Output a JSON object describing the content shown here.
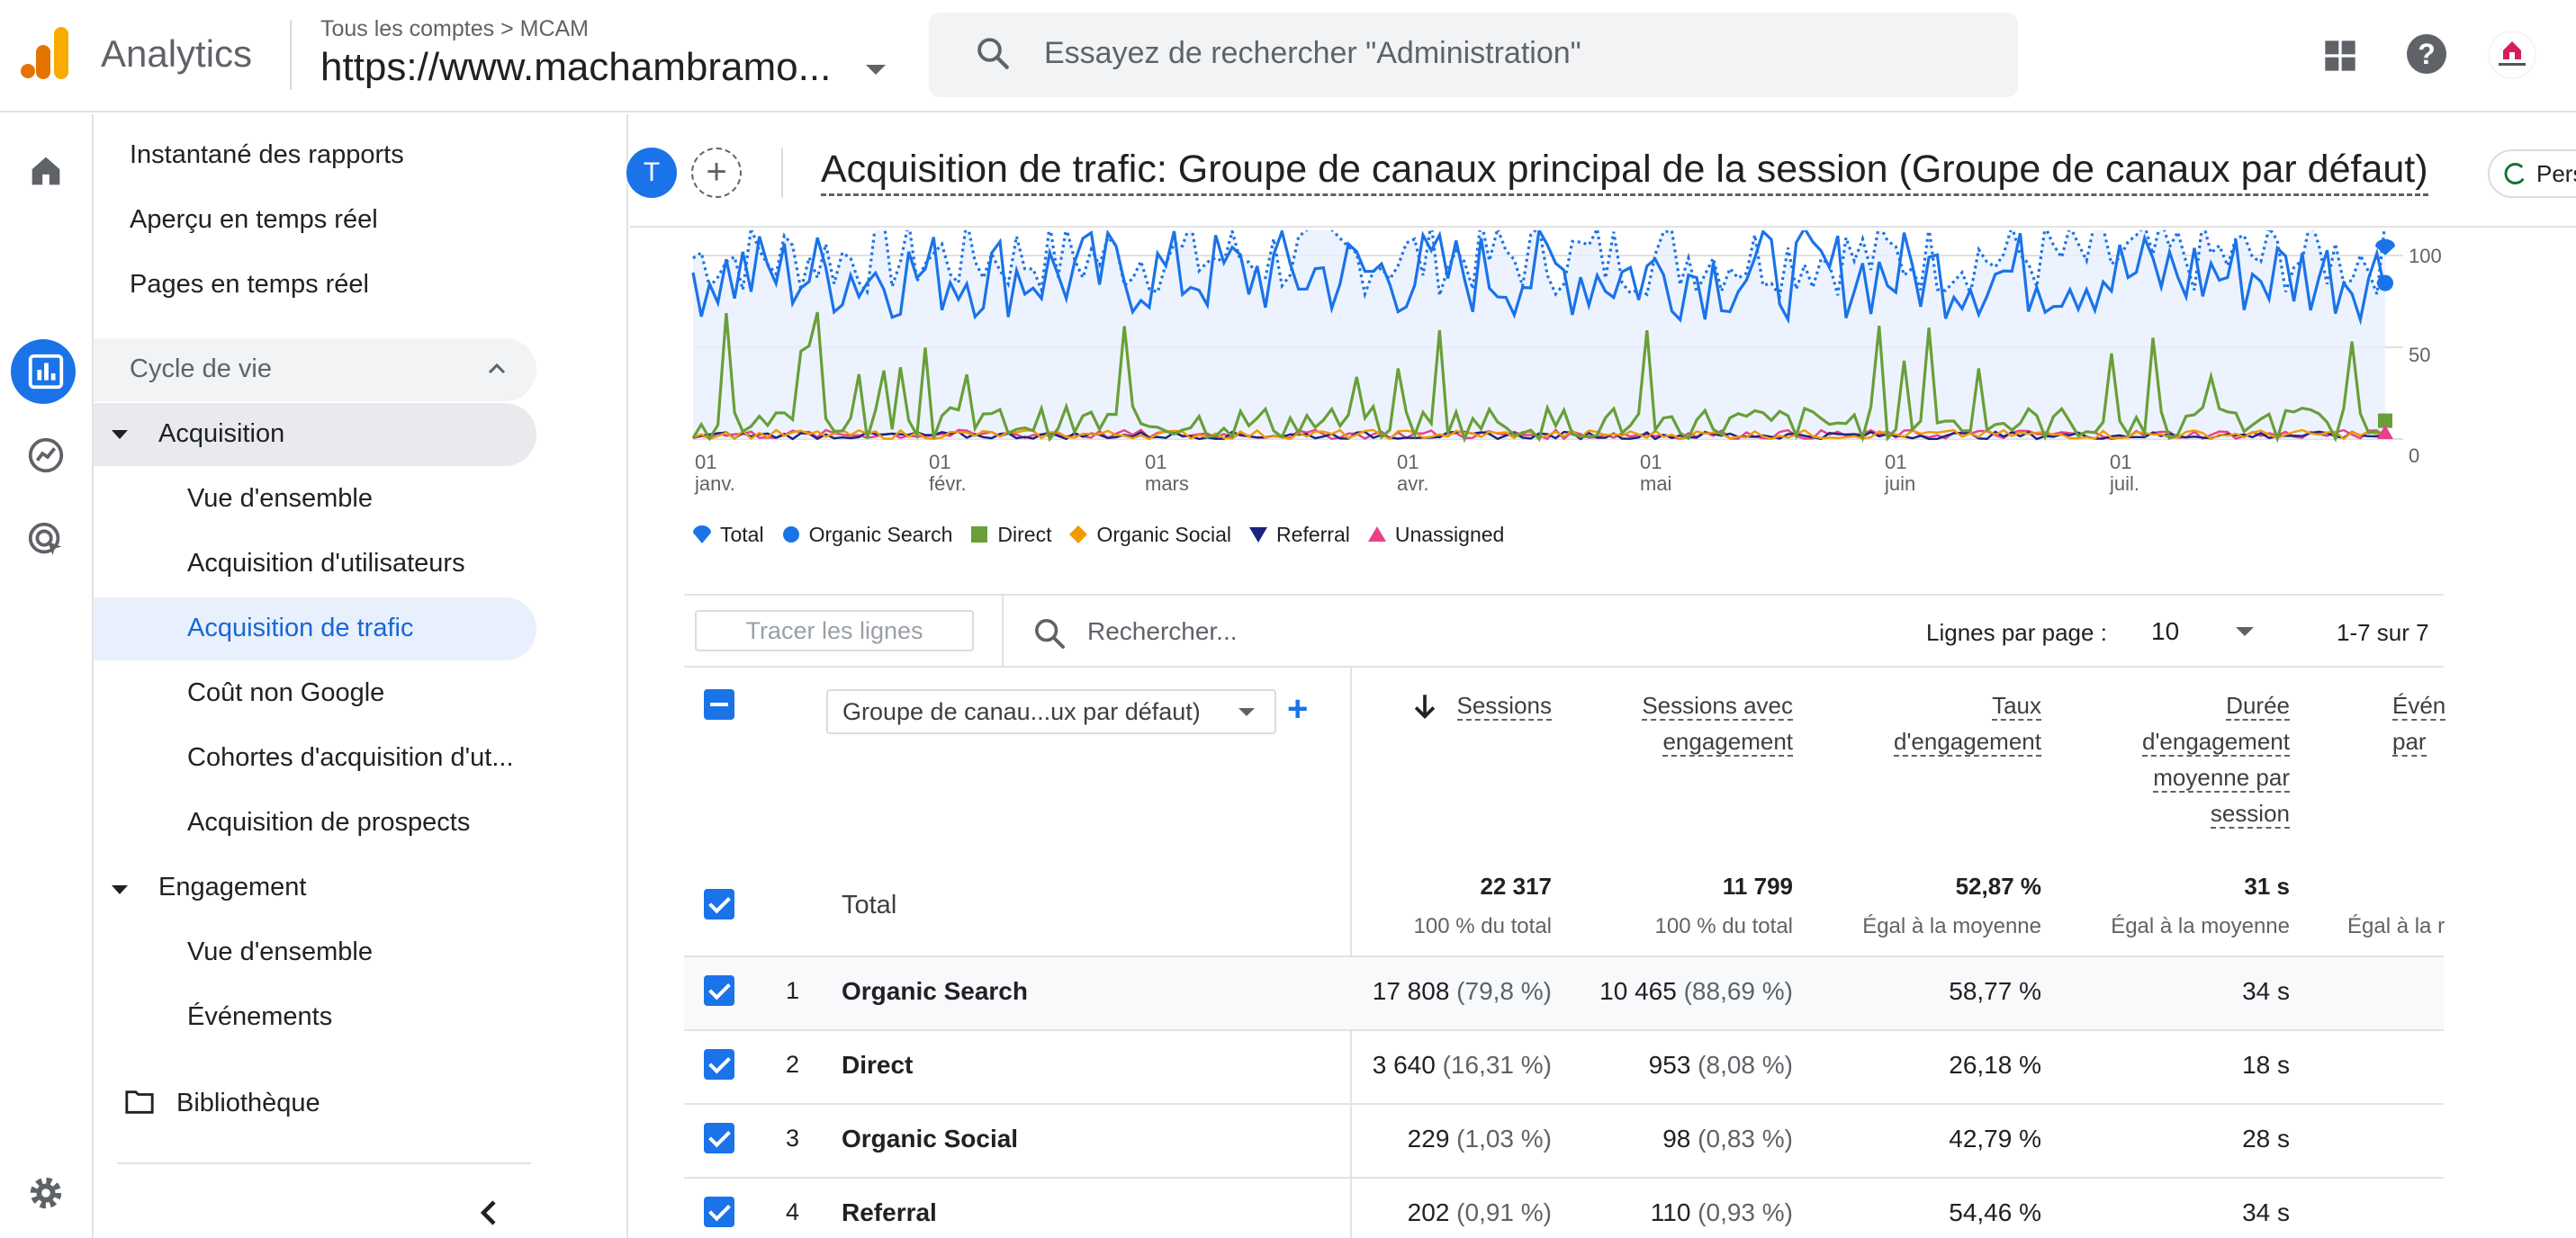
{
  "header": {
    "app_name": "Analytics",
    "breadcrumb": "Tous les comptes > MCAM",
    "property": "https://www.machambramo...",
    "search_placeholder": "Essayez de rechercher \"Administration\"",
    "icons": [
      "apps-icon",
      "help-icon",
      "account-avatar"
    ]
  },
  "left_rail": {
    "icons": [
      "home-icon",
      "reports-icon",
      "explore-icon",
      "advertising-icon",
      "settings-icon"
    ]
  },
  "nav": {
    "items": [
      {
        "label": "Instantané des rapports"
      },
      {
        "label": "Aperçu en temps réel"
      },
      {
        "label": "Pages en temps réel"
      }
    ],
    "lifecycle": "Cycle de vie",
    "acquisition": "Acquisition",
    "acquisition_items": [
      {
        "label": "Vue d'ensemble"
      },
      {
        "label": "Acquisition d'utilisateurs"
      },
      {
        "label": "Acquisition de trafic"
      },
      {
        "label": "Coût non Google"
      },
      {
        "label": "Cohortes d'acquisition d'ut..."
      },
      {
        "label": "Acquisition de prospects"
      }
    ],
    "engagement": "Engagement",
    "engagement_items": [
      {
        "label": "Vue d'ensemble"
      },
      {
        "label": "Événements"
      }
    ],
    "library": "Bibliothèque"
  },
  "title_bar": {
    "avatar_letter": "T",
    "title": "Acquisition de trafic: Groupe de canaux principal de la session (Groupe de canaux par défaut)",
    "customize_label": "Perso"
  },
  "chart_data": {
    "type": "line",
    "x_tick_labels": [
      {
        "day": "01",
        "month": "janv."
      },
      {
        "day": "01",
        "month": "févr."
      },
      {
        "day": "01",
        "month": "mars"
      },
      {
        "day": "01",
        "month": "avr."
      },
      {
        "day": "01",
        "month": "mai"
      },
      {
        "day": "01",
        "month": "juin"
      },
      {
        "day": "01",
        "month": "juil."
      }
    ],
    "y_ticks": [
      "100",
      "50",
      "0"
    ],
    "ylim": [
      0,
      110
    ],
    "legend": [
      {
        "name": "Total",
        "color": "#1a73e8",
        "shape": "pin"
      },
      {
        "name": "Organic Search",
        "color": "#1a73e8",
        "shape": "circle"
      },
      {
        "name": "Direct",
        "color": "#689f38",
        "shape": "square"
      },
      {
        "name": "Organic Social",
        "color": "#f29900",
        "shape": "diamond"
      },
      {
        "name": "Referral",
        "color": "#1a237e",
        "shape": "triangle-down"
      },
      {
        "name": "Unassigned",
        "color": "#e8408a",
        "shape": "triangle-up"
      }
    ],
    "series": [
      {
        "name": "Total",
        "style": "dotted",
        "color": "#1a73e8",
        "approx_level": 100,
        "approx_range": [
          78,
          120
        ]
      },
      {
        "name": "Organic Search",
        "color": "#1a73e8",
        "approx_level": 85,
        "approx_range": [
          65,
          115
        ]
      },
      {
        "name": "Direct",
        "color": "#689f38",
        "approx_level": 12,
        "approx_range": [
          0,
          70
        ]
      },
      {
        "name": "Organic Social",
        "color": "#f29900",
        "approx_level": 1,
        "approx_range": [
          0,
          5
        ]
      },
      {
        "name": "Referral",
        "color": "#1a237e",
        "approx_level": 1,
        "approx_range": [
          0,
          4
        ]
      },
      {
        "name": "Unassigned",
        "color": "#e8408a",
        "approx_level": 1,
        "approx_range": [
          0,
          5
        ]
      }
    ]
  },
  "table": {
    "plot_rows_label": "Tracer les lignes",
    "search_placeholder": "Rechercher...",
    "rows_per_page_label": "Lignes par page :",
    "rows_per_page_value": "10",
    "pagination": "1-7 sur 7",
    "dimension": "Groupe de canau...ux par défaut)",
    "columns": [
      {
        "lines": [
          "Sessions"
        ]
      },
      {
        "lines": [
          "Sessions avec",
          "engagement"
        ]
      },
      {
        "lines": [
          "Taux",
          "d'engagement"
        ]
      },
      {
        "lines": [
          "Durée",
          "d'engagement",
          "moyenne par",
          "session"
        ]
      },
      {
        "lines": [
          "Évén",
          "par"
        ]
      }
    ],
    "total": {
      "label": "Total",
      "values": [
        "22 317",
        "11 799",
        "52,87 %",
        "31 s"
      ],
      "subs": [
        "100 % du total",
        "100 % du total",
        "Égal à la moyenne",
        "Égal à la moyenne",
        "Égal à la r"
      ]
    },
    "rows": [
      {
        "num": "1",
        "name": "Organic Search",
        "sessions": "17 808",
        "sessions_pct": "(79,8 %)",
        "engaged": "10 465",
        "engaged_pct": "(88,69 %)",
        "rate": "58,77 %",
        "duration": "34 s"
      },
      {
        "num": "2",
        "name": "Direct",
        "sessions": "3 640",
        "sessions_pct": "(16,31 %)",
        "engaged": "953",
        "engaged_pct": "(8,08 %)",
        "rate": "26,18 %",
        "duration": "18 s"
      },
      {
        "num": "3",
        "name": "Organic Social",
        "sessions": "229",
        "sessions_pct": "(1,03 %)",
        "engaged": "98",
        "engaged_pct": "(0,83 %)",
        "rate": "42,79 %",
        "duration": "28 s"
      },
      {
        "num": "4",
        "name": "Referral",
        "sessions": "202",
        "sessions_pct": "(0,91 %)",
        "engaged": "110",
        "engaged_pct": "(0,93 %)",
        "rate": "54,46 %",
        "duration": "34 s"
      }
    ]
  }
}
